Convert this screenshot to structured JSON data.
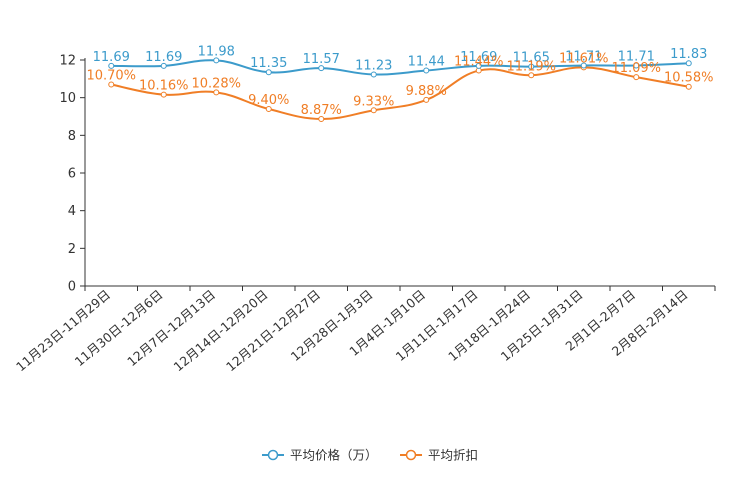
{
  "chart_data": {
    "type": "line",
    "categories": [
      "11月23日-11月29日",
      "11月30日-12月6日",
      "12月7日-12月13日",
      "12月14日-12月20日",
      "12月21日-12月27日",
      "12月28日-1月3日",
      "1月4日-1月10日",
      "1月11日-1月17日",
      "1月18日-1月24日",
      "1月25日-1月31日",
      "2月1日-2月7日",
      "2月8日-2月14日"
    ],
    "series": [
      {
        "name": "平均价格（万）",
        "color": "#3c9bcb",
        "values": [
          11.69,
          11.69,
          11.98,
          11.35,
          11.57,
          11.23,
          11.44,
          11.69,
          11.65,
          11.71,
          11.71,
          11.83
        ],
        "labels": [
          "11.69",
          "11.69",
          "11.98",
          "11.35",
          "11.57",
          "11.23",
          "11.44",
          "11.69",
          "11.65",
          "11.71",
          "11.71",
          "11.83"
        ]
      },
      {
        "name": "平均折扣",
        "color": "#f07e26",
        "values": [
          10.7,
          10.16,
          10.28,
          9.4,
          8.87,
          9.33,
          9.88,
          11.44,
          11.19,
          11.61,
          11.09,
          10.58
        ],
        "labels": [
          "10.70%",
          "10.16%",
          "10.28%",
          "9.40%",
          "8.87%",
          "9.33%",
          "9.88%",
          "11.44%",
          "11.19%",
          "11.61%",
          "11.09%",
          "10.58%"
        ]
      }
    ],
    "ylim": [
      0,
      12
    ],
    "yticks": [
      0,
      2,
      4,
      6,
      8,
      10,
      12
    ],
    "title": "",
    "xlabel": "",
    "ylabel": "",
    "legend": "bottom-center",
    "grid": false
  }
}
